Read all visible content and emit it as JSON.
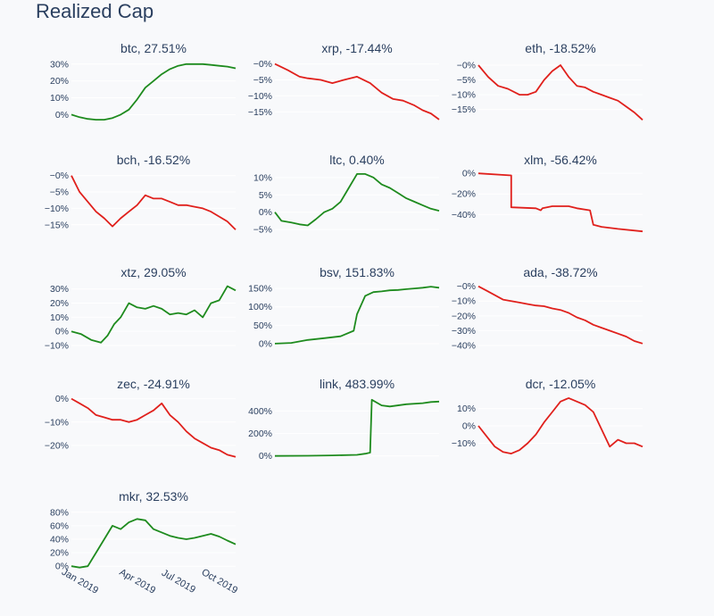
{
  "page": {
    "title": "Realized Cap"
  },
  "colors": {
    "up": "#1e8b1e",
    "down": "#e0201c",
    "grid": "#ffffff",
    "text": "#2a3f5f"
  },
  "chart_data": [
    {
      "type": "line",
      "title": "btc, 27.51%",
      "ylim": [
        -4,
        32
      ],
      "yticks": [
        0,
        10,
        20,
        30
      ],
      "ylabels": [
        "0%",
        "10%",
        "20%",
        "30%"
      ],
      "x": [
        0,
        0.05,
        0.1,
        0.15,
        0.2,
        0.25,
        0.3,
        0.35,
        0.4,
        0.45,
        0.5,
        0.55,
        0.6,
        0.65,
        0.7,
        0.75,
        0.8,
        0.85,
        0.9,
        0.95,
        1.0
      ],
      "values": [
        0,
        -1.5,
        -2.5,
        -3,
        -3,
        -2,
        0,
        3,
        9,
        16,
        20,
        24,
        27,
        29,
        30,
        30,
        30,
        29.5,
        29,
        28.5,
        27.5
      ]
    },
    {
      "type": "line",
      "title": "xrp, -17.44%",
      "ylim": [
        -18,
        1
      ],
      "yticks": [
        0,
        -5,
        -10,
        -15
      ],
      "ylabels": [
        "−0%",
        "−5%",
        "−10%",
        "−15%"
      ],
      "x": [
        0,
        0.08,
        0.15,
        0.2,
        0.28,
        0.35,
        0.42,
        0.5,
        0.58,
        0.65,
        0.72,
        0.78,
        0.85,
        0.9,
        0.95,
        1.0
      ],
      "values": [
        0,
        -2,
        -4,
        -4.5,
        -5,
        -6,
        -5,
        -4,
        -6,
        -9,
        -11,
        -11.5,
        -13,
        -14.5,
        -15.5,
        -17.4
      ]
    },
    {
      "type": "line",
      "title": "eth, -18.52%",
      "ylim": [
        -19,
        1.5
      ],
      "yticks": [
        0,
        -5,
        -10,
        -15
      ],
      "ylabels": [
        "−0%",
        "−5%",
        "−10%",
        "−15%"
      ],
      "x": [
        0,
        0.06,
        0.12,
        0.18,
        0.25,
        0.3,
        0.35,
        0.4,
        0.45,
        0.5,
        0.55,
        0.6,
        0.65,
        0.7,
        0.75,
        0.8,
        0.85,
        0.9,
        0.95,
        1.0
      ],
      "values": [
        0,
        -4,
        -7,
        -8,
        -10,
        -10,
        -9,
        -5,
        -2,
        0,
        -4,
        -7,
        -7.5,
        -9,
        -10,
        -11,
        -12,
        -14,
        -16,
        -18.5
      ]
    },
    {
      "type": "line",
      "title": "bch, -16.52%",
      "ylim": [
        -17.5,
        1
      ],
      "yticks": [
        0,
        -5,
        -10,
        -15
      ],
      "ylabels": [
        "−0%",
        "−5%",
        "−10%",
        "−15%"
      ],
      "x": [
        0,
        0.05,
        0.1,
        0.15,
        0.2,
        0.25,
        0.3,
        0.35,
        0.4,
        0.45,
        0.5,
        0.55,
        0.6,
        0.65,
        0.7,
        0.75,
        0.8,
        0.85,
        0.9,
        0.95,
        1.0
      ],
      "values": [
        0,
        -5,
        -8,
        -11,
        -13,
        -15.5,
        -13,
        -11,
        -9,
        -6,
        -7,
        -7,
        -8,
        -9,
        -9,
        -9.5,
        -10,
        -11,
        -12.5,
        -14,
        -16.5
      ]
    },
    {
      "type": "line",
      "title": "ltc, 0.40%",
      "ylim": [
        -6,
        11.5
      ],
      "yticks": [
        10,
        5,
        0,
        -5
      ],
      "ylabels": [
        "10%",
        "5%",
        "0%",
        "−5%"
      ],
      "x": [
        0,
        0.04,
        0.1,
        0.15,
        0.2,
        0.25,
        0.3,
        0.35,
        0.4,
        0.45,
        0.5,
        0.55,
        0.6,
        0.65,
        0.7,
        0.75,
        0.8,
        0.85,
        0.9,
        0.95,
        1.0
      ],
      "values": [
        0,
        -2.5,
        -3,
        -3.5,
        -3.8,
        -2,
        0,
        1,
        3,
        7,
        11,
        11,
        10,
        8,
        7,
        5.5,
        4,
        3,
        2,
        1,
        0.4
      ]
    },
    {
      "type": "line",
      "title": "xlm, -56.42%",
      "ylim": [
        -58,
        1
      ],
      "yticks": [
        0,
        -20,
        -40
      ],
      "ylabels": [
        "0%",
        "−20%",
        "−40%"
      ],
      "x": [
        0,
        0.2,
        0.2,
        0.35,
        0.38,
        0.39,
        0.45,
        0.55,
        0.6,
        0.68,
        0.7,
        0.75,
        0.85,
        1.0
      ],
      "values": [
        0,
        -2,
        -33,
        -34,
        -36,
        -34,
        -32,
        -32,
        -34,
        -36,
        -50,
        -52,
        -54,
        -56.4
      ]
    },
    {
      "type": "line",
      "title": "xtz, 29.05%",
      "ylim": [
        -10,
        33
      ],
      "yticks": [
        30,
        20,
        10,
        0,
        -10
      ],
      "ylabels": [
        "30%",
        "20%",
        "10%",
        "0%",
        "−10%"
      ],
      "x": [
        0,
        0.06,
        0.12,
        0.18,
        0.22,
        0.26,
        0.3,
        0.35,
        0.4,
        0.45,
        0.5,
        0.55,
        0.6,
        0.65,
        0.7,
        0.75,
        0.8,
        0.85,
        0.9,
        0.95,
        1.0
      ],
      "values": [
        0,
        -2,
        -6,
        -8,
        -3,
        5,
        10,
        20,
        17,
        16,
        18,
        16,
        12,
        13,
        12,
        15,
        10,
        20,
        22,
        32,
        29
      ]
    },
    {
      "type": "line",
      "title": "bsv, 151.83%",
      "ylim": [
        -5,
        160
      ],
      "yticks": [
        150,
        100,
        50,
        0
      ],
      "ylabels": [
        "150%",
        "100%",
        "50%",
        "0%"
      ],
      "x": [
        0,
        0.1,
        0.2,
        0.3,
        0.4,
        0.48,
        0.5,
        0.55,
        0.6,
        0.65,
        0.7,
        0.75,
        0.8,
        0.85,
        0.9,
        0.95,
        1.0
      ],
      "values": [
        0,
        2,
        10,
        15,
        20,
        35,
        80,
        130,
        140,
        142,
        145,
        146,
        148,
        150,
        152,
        155,
        152
      ]
    },
    {
      "type": "line",
      "title": "ada, -38.72%",
      "ylim": [
        -40,
        1
      ],
      "yticks": [
        0,
        -10,
        -20,
        -30,
        -40
      ],
      "ylabels": [
        "−0%",
        "−10%",
        "−20%",
        "−30%",
        "−40%"
      ],
      "x": [
        0,
        0.05,
        0.1,
        0.15,
        0.2,
        0.25,
        0.3,
        0.35,
        0.4,
        0.45,
        0.5,
        0.55,
        0.6,
        0.65,
        0.7,
        0.75,
        0.8,
        0.85,
        0.9,
        0.95,
        1.0
      ],
      "values": [
        0,
        -3,
        -6,
        -9,
        -10,
        -11,
        -12,
        -13,
        -13.5,
        -15,
        -16,
        -18,
        -21,
        -23,
        -26,
        -28,
        -30,
        -32,
        -34,
        -37,
        -38.7
      ]
    },
    {
      "type": "line",
      "title": "zec, -24.91%",
      "ylim": [
        -25,
        1
      ],
      "yticks": [
        0,
        -10,
        -20
      ],
      "ylabels": [
        "0%",
        "−10%",
        "−20%"
      ],
      "x": [
        0,
        0.05,
        0.1,
        0.15,
        0.2,
        0.25,
        0.3,
        0.35,
        0.4,
        0.45,
        0.5,
        0.55,
        0.6,
        0.65,
        0.7,
        0.75,
        0.8,
        0.85,
        0.9,
        0.95,
        1.0
      ],
      "values": [
        0,
        -2,
        -4,
        -7,
        -8,
        -9,
        -9,
        -10,
        -9,
        -7,
        -5,
        -2,
        -7,
        -10,
        -14,
        -17,
        -19,
        -21,
        -22,
        -24,
        -24.9
      ]
    },
    {
      "type": "line",
      "title": "link, 483.99%",
      "ylim": [
        -10,
        530
      ],
      "yticks": [
        400,
        200,
        0
      ],
      "ylabels": [
        "400%",
        "200%",
        "0%"
      ],
      "x": [
        0,
        0.2,
        0.35,
        0.5,
        0.55,
        0.58,
        0.59,
        0.65,
        0.7,
        0.8,
        0.9,
        0.95,
        1.0
      ],
      "values": [
        0,
        2,
        5,
        10,
        20,
        30,
        500,
        450,
        440,
        460,
        470,
        480,
        484
      ]
    },
    {
      "type": "line",
      "title": "dcr, -12.05%",
      "ylim": [
        -18,
        17
      ],
      "yticks": [
        10,
        0,
        -10
      ],
      "ylabels": [
        "10%",
        "0%",
        "−10%"
      ],
      "x": [
        0,
        0.05,
        0.1,
        0.15,
        0.2,
        0.25,
        0.3,
        0.35,
        0.4,
        0.45,
        0.5,
        0.55,
        0.6,
        0.65,
        0.7,
        0.75,
        0.8,
        0.85,
        0.9,
        0.95,
        1.0
      ],
      "values": [
        0,
        -6,
        -12,
        -15,
        -16,
        -14,
        -10,
        -5,
        2,
        8,
        14,
        16,
        14,
        12,
        8,
        -2,
        -12,
        -8,
        -10,
        -10,
        -12
      ]
    },
    {
      "type": "line",
      "title": "mkr, 32.53%",
      "ylim": [
        -5,
        85
      ],
      "yticks": [
        80,
        60,
        40,
        20,
        0
      ],
      "ylabels": [
        "80%",
        "60%",
        "40%",
        "20%",
        "0%"
      ],
      "x": [
        0,
        0.05,
        0.1,
        0.15,
        0.2,
        0.25,
        0.3,
        0.35,
        0.4,
        0.45,
        0.5,
        0.55,
        0.6,
        0.65,
        0.7,
        0.75,
        0.8,
        0.85,
        0.9,
        0.95,
        1.0
      ],
      "values": [
        0,
        -2,
        0,
        20,
        40,
        60,
        55,
        65,
        70,
        68,
        55,
        50,
        45,
        42,
        40,
        42,
        45,
        48,
        44,
        38,
        32.5
      ],
      "xtick_labels": [
        "Jan 2019",
        "Apr 2019",
        "Jul 2019",
        "Oct 2019"
      ]
    }
  ]
}
